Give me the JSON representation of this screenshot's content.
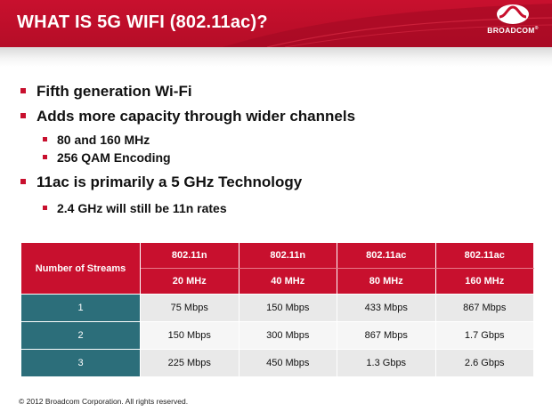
{
  "header": {
    "title": "WHAT IS 5G WIFI (802.11ac)?",
    "logo_text": "BROADCOM",
    "logo_mark": "®",
    "color": "#c8102e"
  },
  "bullets": [
    {
      "text": "Fifth generation Wi-Fi",
      "sub": []
    },
    {
      "text": "Adds more capacity through wider channels",
      "sub": [
        "80 and 160 MHz",
        "256 QAM Encoding"
      ]
    },
    {
      "text": "11ac is primarily a 5 GHz Technology",
      "sub": [
        "2.4 GHz will still be 11n rates"
      ]
    }
  ],
  "table": {
    "row_header": "Number of Streams",
    "columns": [
      {
        "standard": "802.11n",
        "width": "20 MHz"
      },
      {
        "standard": "802.11n",
        "width": "40 MHz"
      },
      {
        "standard": "802.11ac",
        "width": "80 MHz"
      },
      {
        "standard": "802.11ac",
        "width": "160 MHz"
      }
    ],
    "rows": [
      {
        "streams": "1",
        "values": [
          "75 Mbps",
          "150 Mbps",
          "433 Mbps",
          "867 Mbps"
        ]
      },
      {
        "streams": "2",
        "values": [
          "150 Mbps",
          "300 Mbps",
          "867 Mbps",
          "1.7 Gbps"
        ]
      },
      {
        "streams": "3",
        "values": [
          "225 Mbps",
          "450 Mbps",
          "1.3 Gbps",
          "2.6 Gbps"
        ]
      }
    ],
    "colors": {
      "header": "#c8102e",
      "streams": "#2c6e7a"
    }
  },
  "footer": "© 2012 Broadcom Corporation.  All rights reserved."
}
